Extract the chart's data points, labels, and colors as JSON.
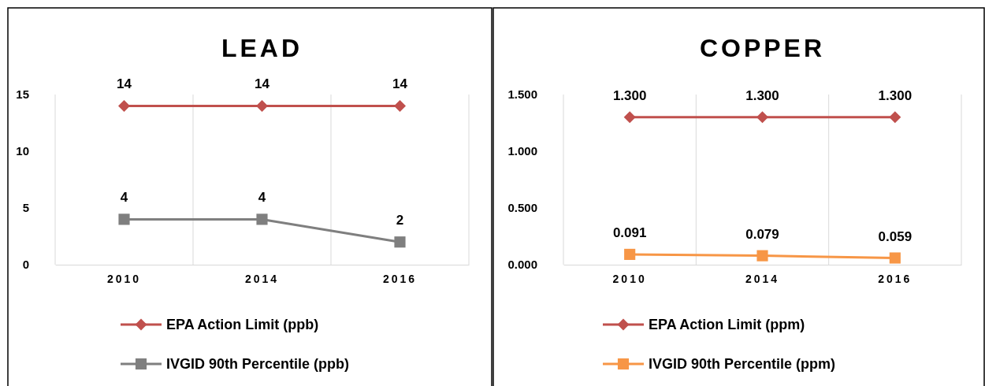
{
  "chart_data": [
    {
      "type": "line",
      "title": "LEAD",
      "categories": [
        "2010",
        "2014",
        "2016"
      ],
      "ylim": [
        0,
        15
      ],
      "yticks": [
        0,
        5,
        10,
        15
      ],
      "grid": "x",
      "legend": "bottom",
      "data_labels": true,
      "series": [
        {
          "name": "EPA Action Limit (ppb)",
          "color": "#c0504d",
          "marker": "diamond",
          "values": [
            14,
            14,
            14
          ]
        },
        {
          "name": "IVGID 90th Percentile (ppb)",
          "color": "#7f7f7f",
          "marker": "square",
          "values": [
            4,
            4,
            2
          ]
        }
      ]
    },
    {
      "type": "line",
      "title": "COPPER",
      "categories": [
        "2010",
        "2014",
        "2016"
      ],
      "ylim": [
        0,
        1.5
      ],
      "yticks": [
        {
          "value": 0,
          "label": "0.000"
        },
        {
          "value": 0.5,
          "label": "0.500"
        },
        {
          "value": 1,
          "label": "1.000"
        },
        {
          "value": 1.5,
          "label": "1.500"
        }
      ],
      "grid": "x",
      "legend": "bottom",
      "series": [
        {
          "name": "EPA Action Limit (ppm)",
          "color": "#c0504d",
          "marker": "diamond",
          "values": [
            1.3,
            1.3,
            1.3
          ],
          "value_labels": [
            "1.300",
            "1.300",
            "1.300"
          ]
        },
        {
          "name": "IVGID 90th Percentile (ppm)",
          "color": "#f79646",
          "marker": "square",
          "values": [
            0.091,
            0.079,
            0.059
          ],
          "value_labels": [
            "0.091",
            "0.079",
            "0.059"
          ]
        }
      ]
    }
  ]
}
